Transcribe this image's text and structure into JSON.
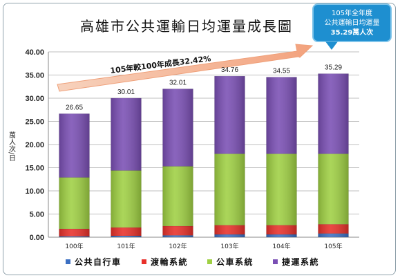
{
  "chart_data": {
    "type": "bar",
    "stacked": true,
    "title": "高雄市公共運輸日均運量成長圖",
    "ylabel": "萬人次/日",
    "xlabel": "",
    "ylim": [
      0,
      40
    ],
    "yticks": [
      "0.00",
      "5.00",
      "10.00",
      "15.00",
      "20.00",
      "25.00",
      "30.00",
      "35.00",
      "40.00"
    ],
    "categories": [
      "100年",
      "101年",
      "102年",
      "103年",
      "104年",
      "105年"
    ],
    "series": [
      {
        "name": "公共自行車",
        "color": "#3b6fc2",
        "values": [
          0.2,
          0.3,
          0.4,
          0.6,
          0.6,
          0.8
        ]
      },
      {
        "name": "渡輪系統",
        "color": "#e8302a",
        "values": [
          1.6,
          1.8,
          2.0,
          2.0,
          2.0,
          2.0
        ]
      },
      {
        "name": "公車系統",
        "color": "#9fd043",
        "values": [
          11.1,
          12.3,
          12.9,
          15.4,
          15.4,
          15.2
        ]
      },
      {
        "name": "捷運系統",
        "color": "#7a4fb4",
        "values": [
          13.75,
          15.61,
          16.71,
          16.76,
          16.55,
          17.29
        ]
      }
    ],
    "totals": [
      "26.65",
      "30.01",
      "32.01",
      "34.76",
      "34.55",
      "35.29"
    ],
    "grid": true,
    "legend_position": "bottom",
    "growth_annotation": "105年較100年成長32.42%"
  },
  "callout": {
    "line1": "105年全年度",
    "line2": "公共運輸日均運量",
    "line3": "35.29萬人次"
  }
}
